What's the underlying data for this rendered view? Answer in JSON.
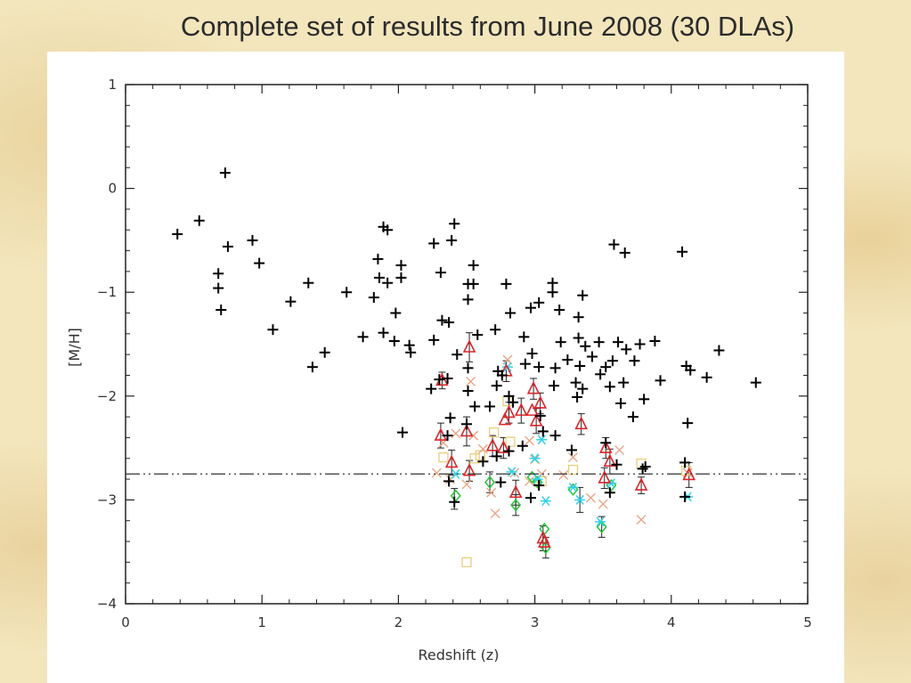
{
  "slide": {
    "title": "Complete set of results from June 2008 (30 DLAs)"
  },
  "chart_data": {
    "type": "scatter",
    "xlabel": "Redshift (z)",
    "ylabel": "[M/H]",
    "xlim": [
      0,
      5
    ],
    "ylim": [
      -4,
      1
    ],
    "xticks": [
      0,
      1,
      2,
      3,
      4,
      5
    ],
    "yticks": [
      1,
      0,
      -1,
      -2,
      -3,
      -4
    ],
    "reference_line": {
      "y": -2.75,
      "style": "dash-dot-dot"
    },
    "grid": false,
    "series": [
      {
        "marker": "plus",
        "color": "#000000",
        "points": [
          [
            0.73,
            0.15
          ],
          [
            0.38,
            -0.44
          ],
          [
            0.54,
            -0.31
          ],
          [
            0.75,
            -0.56
          ],
          [
            0.93,
            -0.5
          ],
          [
            0.98,
            -0.72
          ],
          [
            0.68,
            -0.82
          ],
          [
            0.68,
            -0.96
          ],
          [
            0.7,
            -1.17
          ],
          [
            1.08,
            -1.36
          ],
          [
            1.21,
            -1.09
          ],
          [
            1.34,
            -0.91
          ],
          [
            1.37,
            -1.72
          ],
          [
            1.46,
            -1.58
          ],
          [
            1.62,
            -1.0
          ],
          [
            1.74,
            -1.43
          ],
          [
            1.82,
            -1.05
          ],
          [
            1.85,
            -0.68
          ],
          [
            1.86,
            -0.86
          ],
          [
            1.89,
            -0.37
          ],
          [
            1.92,
            -0.4
          ],
          [
            1.92,
            -0.91
          ],
          [
            1.89,
            -1.39
          ],
          [
            1.97,
            -1.47
          ],
          [
            1.98,
            -1.2
          ],
          [
            2.02,
            -0.74
          ],
          [
            2.02,
            -0.86
          ],
          [
            2.08,
            -1.51
          ],
          [
            2.09,
            -1.58
          ],
          [
            2.03,
            -2.35
          ],
          [
            2.26,
            -0.53
          ],
          [
            2.31,
            -0.81
          ],
          [
            2.32,
            -1.27
          ],
          [
            2.26,
            -1.46
          ],
          [
            2.24,
            -1.93
          ],
          [
            2.3,
            -1.84
          ],
          [
            2.36,
            -1.83
          ],
          [
            2.37,
            -1.29
          ],
          [
            2.39,
            -0.5
          ],
          [
            2.41,
            -0.34
          ],
          [
            2.43,
            -1.6
          ],
          [
            2.38,
            -2.21
          ],
          [
            2.36,
            -2.38
          ],
          [
            2.51,
            -1.73
          ],
          [
            2.51,
            -1.95
          ],
          [
            2.51,
            -0.92
          ],
          [
            2.55,
            -0.74
          ],
          [
            2.55,
            -0.92
          ],
          [
            2.51,
            -1.07
          ],
          [
            2.56,
            -2.1
          ],
          [
            2.58,
            -1.41
          ],
          [
            2.67,
            -2.1
          ],
          [
            2.71,
            -1.36
          ],
          [
            2.73,
            -1.76
          ],
          [
            2.72,
            -1.9
          ],
          [
            2.76,
            -1.8
          ],
          [
            2.79,
            -0.92
          ],
          [
            2.82,
            -1.2
          ],
          [
            2.81,
            -2.0
          ],
          [
            2.84,
            -2.06
          ],
          [
            2.92,
            -1.43
          ],
          [
            2.93,
            -1.69
          ],
          [
            2.91,
            -2.48
          ],
          [
            2.97,
            -1.15
          ],
          [
            2.98,
            -1.59
          ],
          [
            3.03,
            -1.1
          ],
          [
            3.03,
            -1.72
          ],
          [
            3.04,
            -2.19
          ],
          [
            3.06,
            -2.34
          ],
          [
            3.13,
            -0.91
          ],
          [
            3.13,
            -1.0
          ],
          [
            3.14,
            -1.9
          ],
          [
            3.15,
            -1.73
          ],
          [
            3.15,
            -2.38
          ],
          [
            3.18,
            -1.17
          ],
          [
            3.19,
            -1.48
          ],
          [
            3.24,
            -1.65
          ],
          [
            3.27,
            -2.52
          ],
          [
            3.3,
            -1.87
          ],
          [
            3.31,
            -2.01
          ],
          [
            3.32,
            -1.24
          ],
          [
            3.32,
            -1.44
          ],
          [
            3.33,
            -1.71
          ],
          [
            3.35,
            -1.03
          ],
          [
            3.37,
            -1.52
          ],
          [
            3.35,
            -1.93
          ],
          [
            3.42,
            -1.62
          ],
          [
            3.47,
            -1.48
          ],
          [
            3.48,
            -1.79
          ],
          [
            3.52,
            -1.72
          ],
          [
            3.55,
            -1.91
          ],
          [
            3.57,
            -1.66
          ],
          [
            3.58,
            -0.54
          ],
          [
            3.61,
            -1.48
          ],
          [
            3.63,
            -2.07
          ],
          [
            3.65,
            -1.87
          ],
          [
            3.66,
            -0.62
          ],
          [
            3.67,
            -1.55
          ],
          [
            3.72,
            -2.2
          ],
          [
            3.73,
            -1.66
          ],
          [
            3.77,
            -1.5
          ],
          [
            3.8,
            -2.03
          ],
          [
            3.88,
            -1.47
          ],
          [
            3.92,
            -1.85
          ],
          [
            3.52,
            -2.45
          ],
          [
            3.6,
            -2.66
          ],
          [
            3.81,
            -2.68
          ],
          [
            4.08,
            -0.61
          ],
          [
            4.11,
            -1.71
          ],
          [
            4.14,
            -1.75
          ],
          [
            4.12,
            -2.26
          ],
          [
            4.1,
            -2.64
          ],
          [
            4.26,
            -1.82
          ],
          [
            4.35,
            -1.56
          ],
          [
            4.62,
            -1.87
          ],
          [
            2.37,
            -2.82
          ],
          [
            2.41,
            -3.02
          ],
          [
            2.72,
            -2.58
          ],
          [
            2.75,
            -2.83
          ],
          [
            2.81,
            -2.53
          ],
          [
            2.97,
            -2.98
          ],
          [
            3.03,
            -2.86
          ],
          [
            3.55,
            -2.93
          ],
          [
            3.79,
            -2.7
          ],
          [
            4.1,
            -2.97
          ],
          [
            2.5,
            -2.27
          ],
          [
            2.62,
            -2.63
          ]
        ]
      },
      {
        "marker": "triangle",
        "color": "#d9262b",
        "points": [
          [
            2.31,
            -2.38
          ],
          [
            2.32,
            -1.85
          ],
          [
            2.39,
            -2.64
          ],
          [
            2.5,
            -2.34
          ],
          [
            2.52,
            -1.53
          ],
          [
            2.52,
            -2.72
          ],
          [
            2.69,
            -2.48
          ],
          [
            2.77,
            -2.5
          ],
          [
            2.78,
            -2.23
          ],
          [
            2.79,
            -1.76
          ],
          [
            2.81,
            -2.16
          ],
          [
            2.86,
            -2.93
          ],
          [
            2.9,
            -2.14
          ],
          [
            2.98,
            -2.14
          ],
          [
            2.99,
            -1.93
          ],
          [
            3.01,
            -2.24
          ],
          [
            3.04,
            -2.07
          ],
          [
            3.06,
            -3.37
          ],
          [
            3.07,
            -3.41
          ],
          [
            3.34,
            -2.27
          ],
          [
            3.51,
            -2.79
          ],
          [
            3.52,
            -2.5
          ],
          [
            3.55,
            -2.63
          ],
          [
            3.78,
            -2.86
          ],
          [
            4.13,
            -2.76
          ]
        ]
      },
      {
        "marker": "cross",
        "color": "#e8a080",
        "points": [
          [
            2.28,
            -2.74
          ],
          [
            2.33,
            -2.45
          ],
          [
            2.38,
            -2.8
          ],
          [
            2.42,
            -2.36
          ],
          [
            2.5,
            -2.85
          ],
          [
            2.53,
            -1.86
          ],
          [
            2.55,
            -2.38
          ],
          [
            2.62,
            -2.51
          ],
          [
            2.68,
            -2.93
          ],
          [
            2.71,
            -3.13
          ],
          [
            2.8,
            -1.65
          ],
          [
            2.85,
            -2.74
          ],
          [
            2.96,
            -2.82
          ],
          [
            3.0,
            -2.61
          ],
          [
            3.05,
            -2.75
          ],
          [
            3.21,
            -2.76
          ],
          [
            3.28,
            -2.59
          ],
          [
            3.41,
            -2.98
          ],
          [
            3.5,
            -3.04
          ],
          [
            3.62,
            -2.52
          ],
          [
            3.78,
            -3.19
          ],
          [
            4.12,
            -2.74
          ],
          [
            2.96,
            -2.43
          ]
        ]
      },
      {
        "marker": "square",
        "color": "#e8cf7a",
        "points": [
          [
            2.5,
            -3.6
          ],
          [
            2.33,
            -2.59
          ],
          [
            2.56,
            -2.6
          ],
          [
            2.6,
            -2.57
          ],
          [
            2.8,
            -2.05
          ],
          [
            2.82,
            -2.44
          ],
          [
            3.05,
            -2.82
          ],
          [
            3.28,
            -2.71
          ],
          [
            3.78,
            -2.65
          ],
          [
            4.11,
            -2.72
          ],
          [
            2.7,
            -2.35
          ]
        ]
      },
      {
        "marker": "asterisk",
        "color": "#2fd2e6",
        "points": [
          [
            2.42,
            -2.75
          ],
          [
            2.8,
            -1.72
          ],
          [
            2.83,
            -2.73
          ],
          [
            3.0,
            -2.6
          ],
          [
            3.02,
            -2.8
          ],
          [
            3.05,
            -2.42
          ],
          [
            3.08,
            -3.01
          ],
          [
            3.28,
            -2.88
          ],
          [
            3.33,
            -3.0
          ],
          [
            3.48,
            -3.21
          ],
          [
            3.56,
            -2.84
          ],
          [
            4.12,
            -2.97
          ]
        ]
      },
      {
        "marker": "diamond",
        "color": "#22c437",
        "points": [
          [
            2.42,
            -2.96
          ],
          [
            2.67,
            -2.83
          ],
          [
            2.86,
            -3.05
          ],
          [
            3.02,
            -2.83
          ],
          [
            3.07,
            -3.28
          ],
          [
            3.08,
            -3.46
          ],
          [
            3.28,
            -2.9
          ],
          [
            3.49,
            -3.26
          ],
          [
            3.56,
            -2.86
          ],
          [
            2.98,
            -2.78
          ]
        ]
      }
    ],
    "error_bars": [
      [
        2.31,
        -2.38,
        0.12
      ],
      [
        2.32,
        -1.85,
        0.08
      ],
      [
        2.39,
        -2.64,
        0.12
      ],
      [
        2.41,
        -2.99,
        0.1
      ],
      [
        2.5,
        -2.34,
        0.14
      ],
      [
        2.52,
        -1.53,
        0.14
      ],
      [
        2.52,
        -2.72,
        0.1
      ],
      [
        2.69,
        -2.48,
        0.1
      ],
      [
        2.77,
        -2.5,
        0.1
      ],
      [
        2.79,
        -1.76,
        0.1
      ],
      [
        2.81,
        -2.16,
        0.1
      ],
      [
        2.86,
        -2.93,
        0.12
      ],
      [
        2.86,
        -3.05,
        0.1
      ],
      [
        2.9,
        -2.14,
        0.12
      ],
      [
        2.99,
        -1.93,
        0.1
      ],
      [
        3.01,
        -2.24,
        0.12
      ],
      [
        3.04,
        -2.07,
        0.1
      ],
      [
        3.06,
        -3.37,
        0.12
      ],
      [
        3.08,
        -3.46,
        0.1
      ],
      [
        3.34,
        -2.27,
        0.1
      ],
      [
        3.51,
        -2.79,
        0.1
      ],
      [
        3.52,
        -2.5,
        0.1
      ],
      [
        3.55,
        -2.63,
        0.12
      ],
      [
        3.78,
        -2.86,
        0.08
      ],
      [
        4.13,
        -2.76,
        0.12
      ],
      [
        3.33,
        -3.0,
        0.12
      ],
      [
        3.49,
        -3.26,
        0.1
      ],
      [
        2.67,
        -2.83,
        0.1
      ]
    ]
  }
}
